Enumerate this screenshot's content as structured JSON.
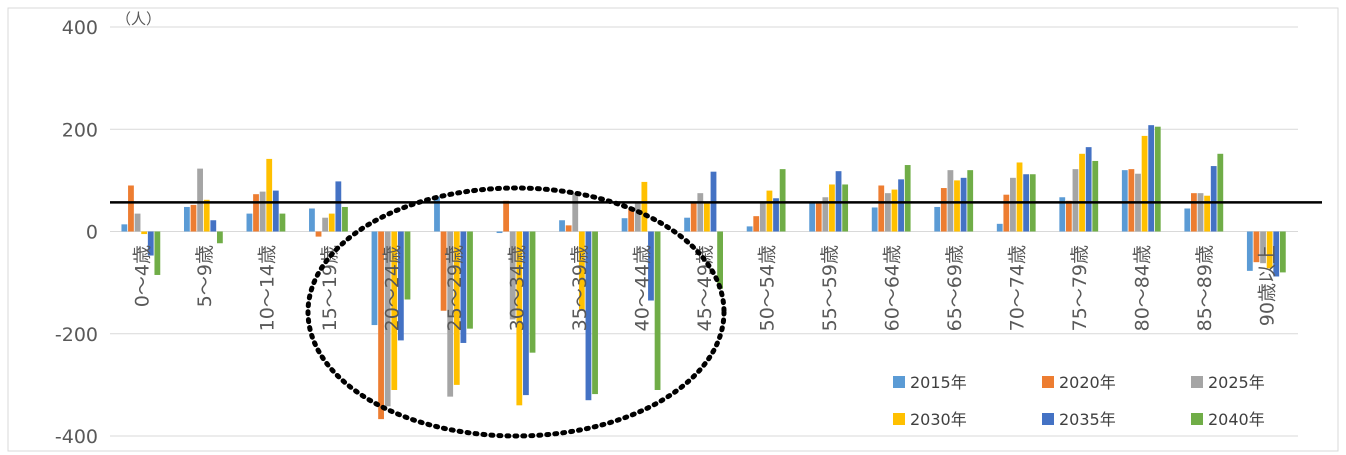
{
  "chart_data": {
    "type": "bar",
    "unit_label": "（人）",
    "categories": [
      "0～4歳",
      "5～9歳",
      "10～14歳",
      "15～19歳",
      "20～24歳",
      "25～29歳",
      "30～34歳",
      "35～39歳",
      "40～44歳",
      "45～49歳",
      "50～54歳",
      "55～59歳",
      "60～64歳",
      "65～69歳",
      "70～74歳",
      "75～79歳",
      "80～84歳",
      "85～89歳",
      "90歳以上"
    ],
    "ylim": [
      -400,
      400
    ],
    "yticks": [
      {
        "value": 400,
        "label": "400"
      },
      {
        "value": 200,
        "label": "200"
      },
      {
        "value": 0,
        "label": "0"
      },
      {
        "value": -200,
        "label": "-200"
      },
      {
        "value": -400,
        "label": "-400"
      }
    ],
    "grid": true,
    "legend_position": "bottom-right",
    "reference_line_value": 57,
    "series": [
      {
        "name": "2015年",
        "color": "#5B9BD5",
        "values": [
          14,
          48,
          35,
          45,
          -183,
          68,
          -3,
          22,
          26,
          27,
          10,
          55,
          47,
          48,
          15,
          67,
          120,
          45,
          -77
        ]
      },
      {
        "name": "2020年",
        "color": "#ED7D31",
        "values": [
          90,
          52,
          73,
          -10,
          -367,
          -155,
          60,
          12,
          45,
          55,
          30,
          55,
          90,
          85,
          72,
          60,
          122,
          75,
          -60
        ]
      },
      {
        "name": "2025年",
        "color": "#A5A5A5",
        "values": [
          35,
          123,
          78,
          27,
          -342,
          -323,
          -172,
          75,
          55,
          75,
          55,
          67,
          75,
          120,
          105,
          122,
          113,
          75,
          -62
        ]
      },
      {
        "name": "2030年",
        "color": "#FFC000",
        "values": [
          -5,
          62,
          142,
          35,
          -310,
          -300,
          -340,
          -155,
          97,
          57,
          80,
          92,
          82,
          100,
          135,
          152,
          187,
          70,
          -72
        ]
      },
      {
        "name": "2035年",
        "color": "#4472C4",
        "values": [
          -47,
          22,
          80,
          98,
          -213,
          -218,
          -320,
          -330,
          -135,
          117,
          65,
          118,
          102,
          105,
          112,
          165,
          208,
          128,
          -88
        ]
      },
      {
        "name": "2040年",
        "color": "#70AD47",
        "values": [
          -85,
          -23,
          35,
          48,
          -133,
          -190,
          -237,
          -318,
          -310,
          -112,
          122,
          92,
          130,
          120,
          112,
          138,
          205,
          152,
          -80
        ]
      }
    ]
  }
}
